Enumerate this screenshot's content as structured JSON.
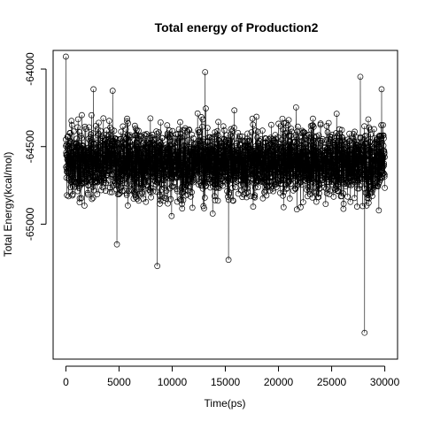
{
  "chart_data": {
    "type": "line",
    "title": "Total energy of Production2",
    "xlabel": "Time(ps)",
    "ylabel": "Total Energy(kcal/mol)",
    "xlim": [
      -1200,
      31200
    ],
    "ylim": [
      -65870,
      -63880
    ],
    "x_ticks": [
      0,
      5000,
      10000,
      15000,
      20000,
      25000,
      30000
    ],
    "y_ticks": [
      -65000,
      -64500,
      -64000
    ],
    "x_tick_labels": [
      "0",
      "5000",
      "10000",
      "15000",
      "20000",
      "25000",
      "30000"
    ],
    "y_tick_labels": [
      "-65000",
      "-64500",
      "-64000"
    ],
    "grid": false,
    "series": [
      {
        "marker": "open-circle",
        "x_range": [
          0,
          30000
        ],
        "sample_interval": 10,
        "mean": -64600,
        "std": 110,
        "notable_points": [
          {
            "x": 0,
            "y": -63920
          },
          {
            "x": 2600,
            "y": -64130
          },
          {
            "x": 4400,
            "y": -64140
          },
          {
            "x": 4800,
            "y": -65130
          },
          {
            "x": 8600,
            "y": -65270
          },
          {
            "x": 13100,
            "y": -64020
          },
          {
            "x": 15300,
            "y": -65230
          },
          {
            "x": 27700,
            "y": -64050
          },
          {
            "x": 28100,
            "y": -65700
          },
          {
            "x": 29700,
            "y": -64130
          }
        ]
      }
    ]
  }
}
